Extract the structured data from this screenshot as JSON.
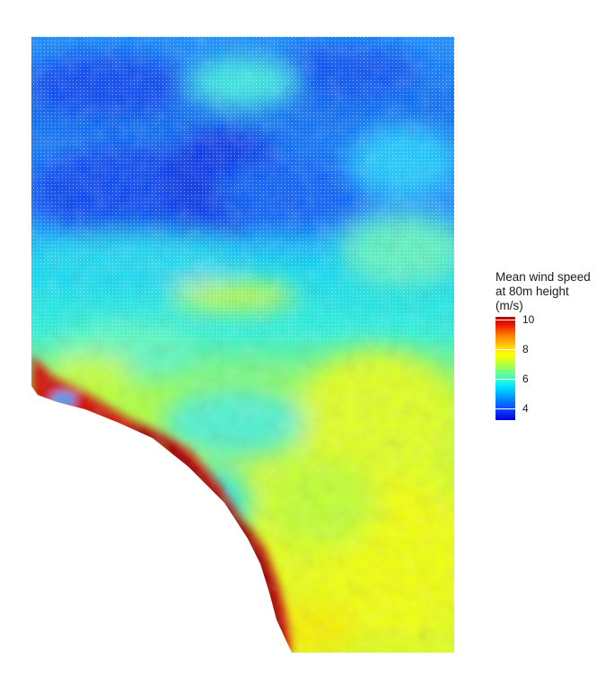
{
  "legend": {
    "title_lines": [
      "Mean wind speed",
      "at 80m height",
      "(m/s)"
    ],
    "ticks": [
      {
        "value": 4,
        "label": "4"
      },
      {
        "value": 6,
        "label": "6"
      },
      {
        "value": 8,
        "label": "8"
      },
      {
        "value": 10,
        "label": "10"
      }
    ],
    "range": [
      3.2,
      10.2
    ]
  },
  "colors": {
    "low": "#0000d8",
    "mid_low": "#00e0ff",
    "mid": "#c8ff28",
    "mid_high": "#ffff00",
    "high": "#b40000"
  }
}
